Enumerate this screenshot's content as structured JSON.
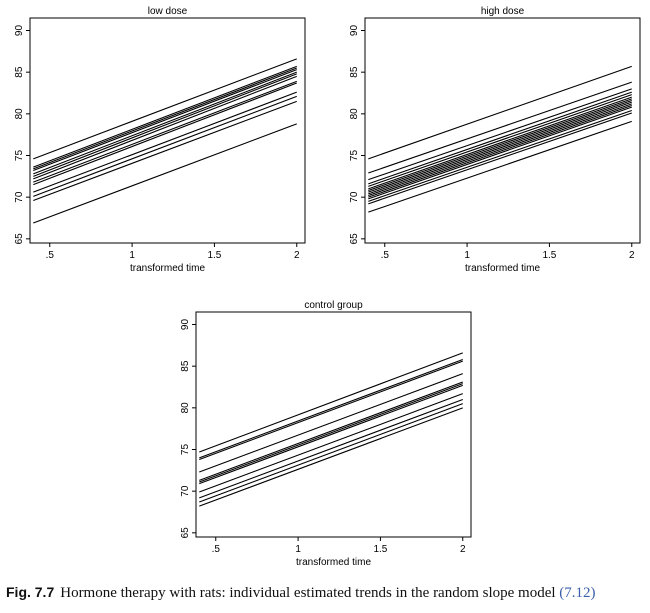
{
  "chart_data": [
    {
      "type": "line",
      "title": "low dose",
      "xlabel": "transformed time",
      "ylabel": "",
      "xlim": [
        0.4,
        2.0
      ],
      "ylim": [
        65,
        90
      ],
      "xticks": [
        ".5",
        "1",
        "1.5",
        "2"
      ],
      "yticks": [
        "65",
        "70",
        "75",
        "80",
        "85",
        "90"
      ],
      "x": [
        0.4,
        2.0
      ],
      "series": [
        {
          "values": [
            74.6,
            86.6
          ]
        },
        {
          "values": [
            73.6,
            85.7
          ]
        },
        {
          "values": [
            73.4,
            85.5
          ]
        },
        {
          "values": [
            73.2,
            85.3
          ]
        },
        {
          "values": [
            72.8,
            85.0
          ]
        },
        {
          "values": [
            72.5,
            84.8
          ]
        },
        {
          "values": [
            72.2,
            84.5
          ]
        },
        {
          "values": [
            71.8,
            83.9
          ]
        },
        {
          "values": [
            71.5,
            83.7
          ]
        },
        {
          "values": [
            70.6,
            82.6
          ]
        },
        {
          "values": [
            70.1,
            82.1
          ]
        },
        {
          "values": [
            69.6,
            81.5
          ]
        },
        {
          "values": [
            66.9,
            78.8
          ]
        }
      ]
    },
    {
      "type": "line",
      "title": "high dose",
      "xlabel": "transformed time",
      "ylabel": "",
      "xlim": [
        0.4,
        2.0
      ],
      "ylim": [
        65,
        90
      ],
      "xticks": [
        ".5",
        "1",
        "1.5",
        "2"
      ],
      "yticks": [
        "65",
        "70",
        "75",
        "80",
        "85",
        "90"
      ],
      "x": [
        0.4,
        2.0
      ],
      "series": [
        {
          "values": [
            74.6,
            85.7
          ]
        },
        {
          "values": [
            72.9,
            83.8
          ]
        },
        {
          "values": [
            72.1,
            83.0
          ]
        },
        {
          "values": [
            71.6,
            82.6
          ]
        },
        {
          "values": [
            71.3,
            82.3
          ]
        },
        {
          "values": [
            71.0,
            82.0
          ]
        },
        {
          "values": [
            70.8,
            81.8
          ]
        },
        {
          "values": [
            70.6,
            81.6
          ]
        },
        {
          "values": [
            70.4,
            81.4
          ]
        },
        {
          "values": [
            70.2,
            81.2
          ]
        },
        {
          "values": [
            70.0,
            81.0
          ]
        },
        {
          "values": [
            69.8,
            80.8
          ]
        },
        {
          "values": [
            69.5,
            80.4
          ]
        },
        {
          "values": [
            69.2,
            80.1
          ]
        },
        {
          "values": [
            68.2,
            79.1
          ]
        }
      ]
    },
    {
      "type": "line",
      "title": "control group",
      "xlabel": "transformed time",
      "ylabel": "",
      "xlim": [
        0.4,
        2.0
      ],
      "ylim": [
        65,
        90
      ],
      "xticks": [
        ".5",
        "1",
        "1.5",
        "2"
      ],
      "yticks": [
        "65",
        "70",
        "75",
        "80",
        "85",
        "90"
      ],
      "x": [
        0.4,
        2.0
      ],
      "series": [
        {
          "values": [
            74.7,
            86.6
          ]
        },
        {
          "values": [
            74.0,
            85.8
          ]
        },
        {
          "values": [
            73.8,
            85.6
          ]
        },
        {
          "values": [
            72.3,
            84.1
          ]
        },
        {
          "values": [
            71.3,
            83.1
          ]
        },
        {
          "values": [
            71.1,
            82.9
          ]
        },
        {
          "values": [
            70.9,
            82.7
          ]
        },
        {
          "values": [
            69.9,
            81.7
          ]
        },
        {
          "values": [
            69.2,
            81.0
          ]
        },
        {
          "values": [
            68.7,
            80.5
          ]
        },
        {
          "values": [
            68.2,
            80.0
          ]
        }
      ]
    }
  ],
  "caption": {
    "label": "Fig. 7.7",
    "text": "Hormone therapy with rats: individual estimated trends in the random slope model ",
    "ref": "(7.12)"
  }
}
